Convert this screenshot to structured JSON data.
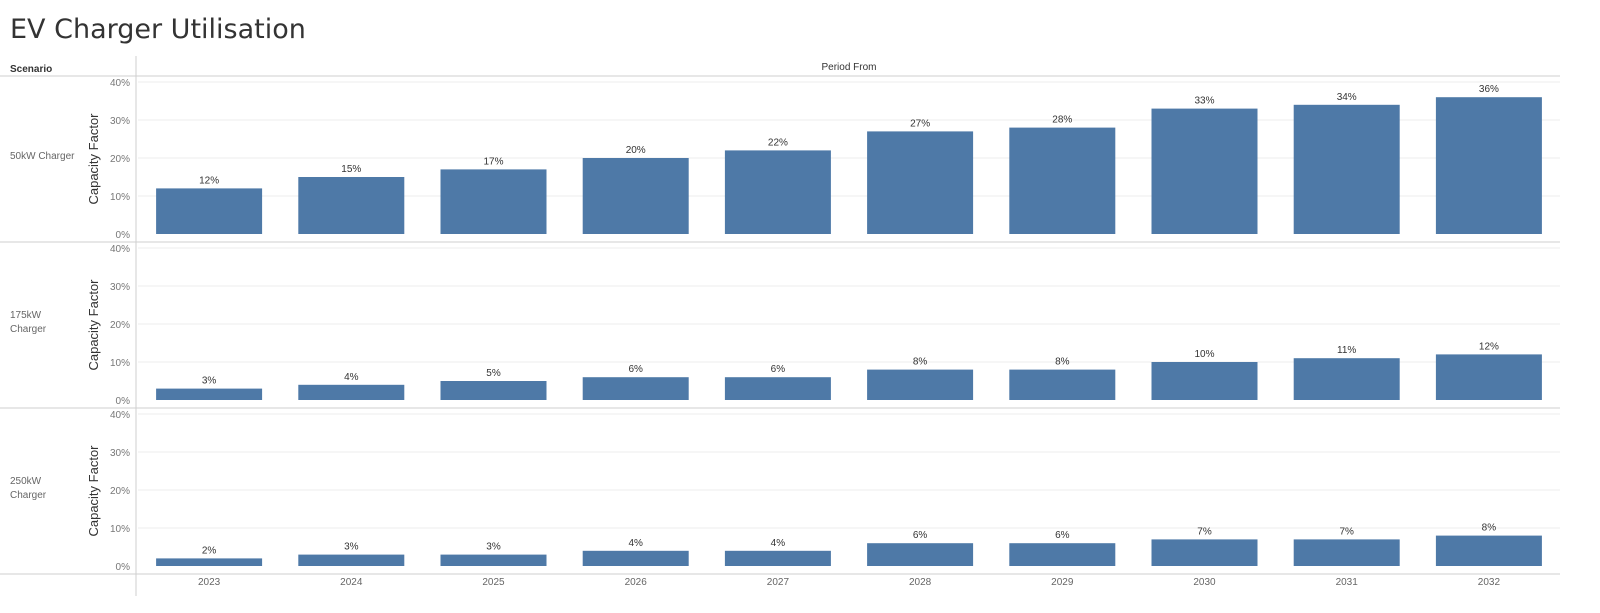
{
  "title": "EV Charger Utilisation",
  "header": {
    "row_header": "Scenario",
    "column_header": "Period From"
  },
  "colors": {
    "bar": "#4e79a7",
    "grid": "#ececec",
    "divider": "#cfcfcf"
  },
  "chart_data": {
    "type": "bar",
    "title": "EV Charger Utilisation",
    "xlabel": "Period From",
    "ylabel": "Capacity Factor",
    "ylim": [
      0,
      40
    ],
    "yticks": [
      "0%",
      "10%",
      "20%",
      "30%",
      "40%"
    ],
    "grid": true,
    "categories": [
      "2023",
      "2024",
      "2025",
      "2026",
      "2027",
      "2028",
      "2029",
      "2030",
      "2031",
      "2032"
    ],
    "series": [
      {
        "name": "50kW Charger",
        "label_lines": [
          "50kW Charger"
        ],
        "values": [
          12,
          15,
          17,
          20,
          22,
          27,
          28,
          33,
          34,
          36
        ],
        "labels": [
          "12%",
          "15%",
          "17%",
          "20%",
          "22%",
          "27%",
          "28%",
          "33%",
          "34%",
          "36%"
        ]
      },
      {
        "name": "175kW Charger",
        "label_lines": [
          "175kW",
          "Charger"
        ],
        "values": [
          3,
          4,
          5,
          6,
          6,
          8,
          8,
          10,
          11,
          12
        ],
        "labels": [
          "3%",
          "4%",
          "5%",
          "6%",
          "6%",
          "8%",
          "8%",
          "10%",
          "11%",
          "12%"
        ]
      },
      {
        "name": "250kW Charger",
        "label_lines": [
          "250kW",
          "Charger"
        ],
        "values": [
          2,
          3,
          3,
          4,
          4,
          6,
          6,
          7,
          7,
          8
        ],
        "labels": [
          "2%",
          "3%",
          "3%",
          "4%",
          "4%",
          "6%",
          "6%",
          "7%",
          "7%",
          "8%"
        ]
      }
    ]
  }
}
